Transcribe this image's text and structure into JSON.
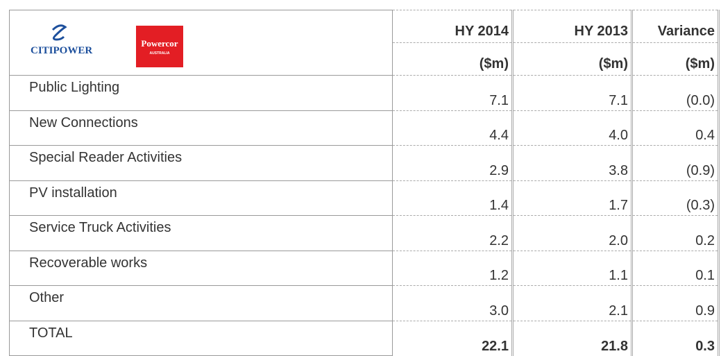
{
  "logos": {
    "citipower": "CITIPOWER",
    "powercor": "Powercor",
    "powercor_sub": "AUSTRALIA"
  },
  "header": {
    "columns": [
      "HY 2014",
      "HY 2013",
      "Variance"
    ],
    "units": [
      "($m)",
      "($m)",
      "($m)"
    ]
  },
  "table": {
    "rows": [
      [
        "Public Lighting",
        "7.1",
        "7.1",
        "(0.0)"
      ],
      [
        "New Connections",
        "4.4",
        "4.0",
        "0.4"
      ],
      [
        "Special Reader Activities",
        "2.9",
        "3.8",
        "(0.9)"
      ],
      [
        "PV installation",
        "1.4",
        "1.7",
        "(0.3)"
      ],
      [
        "Service Truck Activities",
        "2.2",
        "2.0",
        "0.2"
      ],
      [
        "Recoverable works",
        "1.2",
        "1.1",
        "0.1"
      ],
      [
        "Other",
        "3.0",
        "2.1",
        "0.9"
      ],
      [
        "TOTAL",
        "22.1",
        "21.8",
        "0.3"
      ]
    ]
  }
}
